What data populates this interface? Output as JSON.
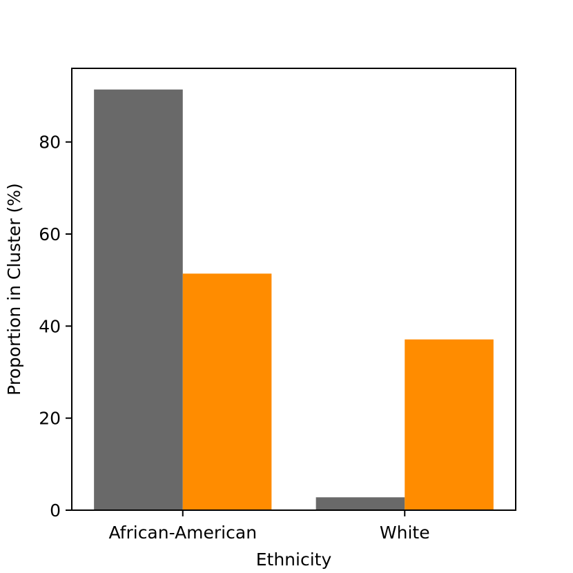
{
  "chart_data": {
    "type": "bar",
    "categories": [
      "African-American",
      "White"
    ],
    "series": [
      {
        "values": [
          91.4,
          2.8
        ],
        "color": "#696969"
      },
      {
        "values": [
          51.4,
          37.1
        ],
        "color": "#ff8c00"
      }
    ],
    "xlabel": "Ethnicity",
    "ylabel": "Proportion in Cluster (%)",
    "ylim": [
      0,
      96
    ],
    "yticks": [
      0,
      20,
      40,
      60,
      80
    ],
    "grid": false
  }
}
